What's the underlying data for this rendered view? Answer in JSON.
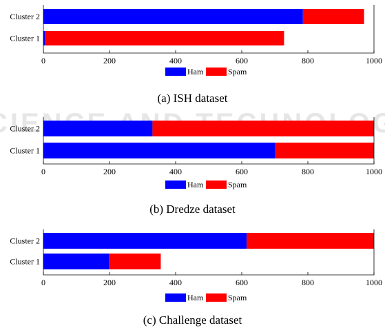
{
  "colors": {
    "ham": "#0000ff",
    "spam": "#ff0000",
    "axis": "#000000",
    "watermark": "#e6e6e6"
  },
  "watermark_text": "SCIENCE AND TECHNOLOGY",
  "chart_data": [
    {
      "type": "bar",
      "orientation": "horizontal",
      "stacked": true,
      "caption": "(a) ISH dataset",
      "categories": [
        "Cluster 1",
        "Cluster 2"
      ],
      "series": [
        {
          "name": "Ham",
          "color": "#0000ff",
          "values": [
            5,
            785
          ]
        },
        {
          "name": "Spam",
          "color": "#ff0000",
          "values": [
            723,
            185
          ]
        }
      ],
      "xlim": [
        0,
        1000
      ],
      "xticks": [
        0,
        200,
        400,
        600,
        800,
        1000
      ],
      "grid": false,
      "legend": "bottom"
    },
    {
      "type": "bar",
      "orientation": "horizontal",
      "stacked": true,
      "caption": "(b) Dredze dataset",
      "categories": [
        "Cluster 1",
        "Cluster 2"
      ],
      "series": [
        {
          "name": "Ham",
          "color": "#0000ff",
          "values": [
            700,
            330
          ]
        },
        {
          "name": "Spam",
          "color": "#ff0000",
          "values": [
            300,
            670
          ]
        }
      ],
      "xlim": [
        0,
        1000
      ],
      "xticks": [
        0,
        200,
        400,
        600,
        800,
        1000
      ],
      "grid": false,
      "legend": "bottom"
    },
    {
      "type": "bar",
      "orientation": "horizontal",
      "stacked": true,
      "caption": "(c) Challenge dataset",
      "categories": [
        "Cluster 1",
        "Cluster 2"
      ],
      "series": [
        {
          "name": "Ham",
          "color": "#0000ff",
          "values": [
            198,
            615
          ]
        },
        {
          "name": "Spam",
          "color": "#ff0000",
          "values": [
            157,
            385
          ]
        }
      ],
      "xlim": [
        0,
        1000
      ],
      "xticks": [
        0,
        200,
        400,
        600,
        800,
        1000
      ],
      "grid": false,
      "legend": "bottom"
    }
  ]
}
